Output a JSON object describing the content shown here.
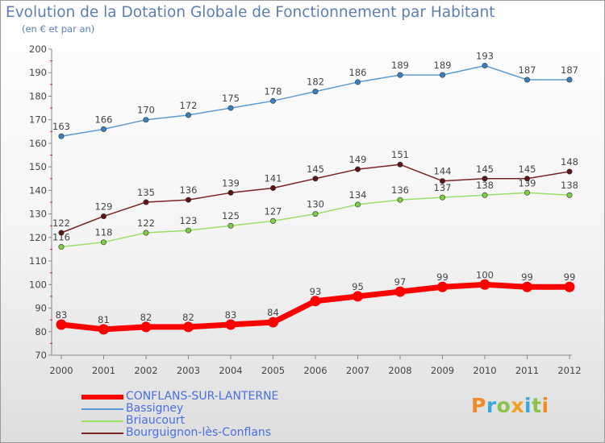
{
  "title": "Evolution de la Dotation Globale de Fonctionnement par Habitant",
  "subtitle": "(en € et par an)",
  "logo": {
    "text": "Proxiti",
    "letters": [
      {
        "ch": "P",
        "color": "#f08a24"
      },
      {
        "ch": "r",
        "color": "#3aa9dd"
      },
      {
        "ch": "o",
        "color": "#8bc34a"
      },
      {
        "ch": "x",
        "color": "#f0a020"
      },
      {
        "ch": "i",
        "color": "#3aa9dd"
      },
      {
        "ch": "t",
        "color": "#8bc34a"
      },
      {
        "ch": "i",
        "color": "#f08a24"
      }
    ]
  },
  "chart_data": {
    "type": "line",
    "title": "Evolution de la Dotation Globale de Fonctionnement par Habitant",
    "subtitle": "(en € et par an)",
    "xlabel": "",
    "ylabel": "",
    "ylim": [
      70,
      200
    ],
    "yticks": [
      70,
      80,
      90,
      100,
      110,
      120,
      130,
      140,
      150,
      160,
      170,
      180,
      190,
      200
    ],
    "x": [
      "2000",
      "2001",
      "2002",
      "2003",
      "2004",
      "2005",
      "2006",
      "2007",
      "2008",
      "2009",
      "2010",
      "2011",
      "2012"
    ],
    "grid": false,
    "legend_position": "bottom-left",
    "series": [
      {
        "name": "CONFLANS-SUR-LANTERNE",
        "color": "#ff0000",
        "emphasis": true,
        "values": [
          83,
          81,
          82,
          82,
          83,
          84,
          93,
          95,
          97,
          99,
          100,
          99,
          99
        ]
      },
      {
        "name": "Bassigney",
        "color": "#5b9bd5",
        "marker": "#3a80c0",
        "values": [
          163,
          166,
          170,
          172,
          175,
          178,
          182,
          186,
          189,
          189,
          193,
          187,
          187
        ]
      },
      {
        "name": "Briaucourt",
        "color": "#99e066",
        "marker": "#7ccc44",
        "values": [
          116,
          118,
          122,
          123,
          125,
          127,
          130,
          134,
          136,
          137,
          138,
          139,
          138
        ]
      },
      {
        "name": "Bourguignon-lès-Conflans",
        "color": "#7a2323",
        "marker": "#5c1515",
        "values": [
          122,
          129,
          135,
          136,
          139,
          141,
          145,
          149,
          151,
          144,
          145,
          145,
          148
        ]
      }
    ]
  }
}
